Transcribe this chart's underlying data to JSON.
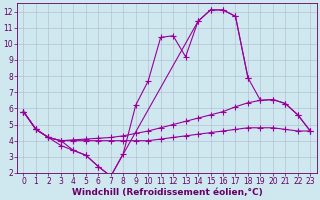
{
  "background_color": "#cfe8f0",
  "grid_color": "#b0b8cc",
  "line_color": "#990099",
  "marker": "+",
  "marker_size": 4,
  "xlim": [
    -0.5,
    23.5
  ],
  "ylim": [
    2,
    12.5
  ],
  "xticks": [
    0,
    1,
    2,
    3,
    4,
    5,
    6,
    7,
    8,
    9,
    10,
    11,
    12,
    13,
    14,
    15,
    16,
    17,
    18,
    19,
    20,
    21,
    22,
    23
  ],
  "yticks": [
    2,
    3,
    4,
    5,
    6,
    7,
    8,
    9,
    10,
    11,
    12
  ],
  "xlabel": "Windchill (Refroidissement éolien,°C)",
  "font_color": "#660066",
  "tick_fontsize": 5.5,
  "xlabel_fontsize": 6.5,
  "curve1_x": [
    0,
    1,
    2,
    3,
    4,
    5,
    6,
    7,
    8,
    9,
    10,
    11,
    12,
    13,
    14,
    15,
    16,
    17,
    18
  ],
  "curve1_y": [
    5.8,
    4.7,
    4.2,
    3.7,
    3.4,
    3.1,
    2.4,
    1.8,
    3.2,
    6.2,
    7.7,
    10.4,
    10.5,
    9.2,
    11.4,
    12.1,
    12.1,
    11.7,
    7.9
  ],
  "curve2_x": [
    0,
    1,
    2,
    3,
    4,
    5,
    6,
    7,
    8,
    9,
    10,
    11,
    12,
    13,
    14,
    15,
    16,
    17,
    18,
    19,
    20,
    21,
    22,
    23
  ],
  "curve2_y": [
    5.8,
    4.7,
    4.2,
    4.0,
    4.05,
    4.1,
    4.15,
    4.2,
    4.3,
    4.45,
    4.6,
    4.8,
    5.0,
    5.2,
    5.4,
    5.6,
    5.8,
    6.1,
    6.35,
    6.5,
    6.55,
    6.3,
    5.6,
    4.6
  ],
  "curve3_x": [
    0,
    1,
    2,
    3,
    4,
    5,
    6,
    7,
    8,
    9,
    10,
    11,
    12,
    13,
    14,
    15,
    16,
    17,
    18,
    19,
    20,
    21,
    22,
    23
  ],
  "curve3_y": [
    5.8,
    4.7,
    4.2,
    4.0,
    4.0,
    4.0,
    4.0,
    4.0,
    4.0,
    4.0,
    4.0,
    4.1,
    4.2,
    4.3,
    4.4,
    4.5,
    4.6,
    4.7,
    4.8,
    4.8,
    4.8,
    4.7,
    4.6,
    4.6
  ],
  "curve4_x": [
    0,
    1,
    2,
    3,
    4,
    5,
    6,
    7,
    14,
    15,
    16,
    17,
    18,
    19,
    20,
    21,
    22,
    23
  ],
  "curve4_y": [
    5.8,
    4.7,
    4.2,
    4.0,
    3.4,
    3.1,
    2.4,
    1.8,
    11.4,
    12.1,
    12.1,
    11.7,
    7.9,
    6.5,
    6.55,
    6.3,
    5.6,
    4.6
  ]
}
